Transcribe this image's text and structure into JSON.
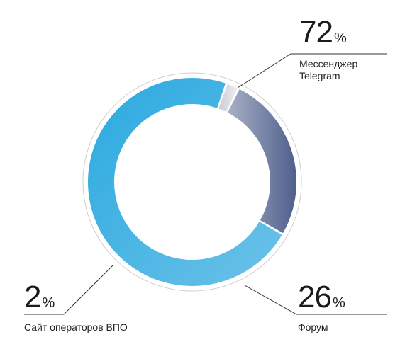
{
  "chart_data": {
    "type": "pie",
    "variant": "donut",
    "unit": "%",
    "slices": [
      {
        "label": "Мессенджер Telegram",
        "label_lines": [
          "Мессенджер",
          "Telegram"
        ],
        "value": 72,
        "color_start": "#2aa9e0",
        "color_end": "#6cc2e8"
      },
      {
        "label": "Форум",
        "label_lines": [
          "Форум"
        ],
        "value": 26,
        "color_start": "#4f5f8d",
        "color_end": "#a8b0c5"
      },
      {
        "label": "Сайт операторов ВПО",
        "label_lines": [
          "Сайт операторов ВПО"
        ],
        "value": 2,
        "color_start": "#c9cdd4",
        "color_end": "#eceef1"
      }
    ],
    "legend": "callouts"
  },
  "display": {
    "telegram_pct": "72",
    "forum_pct": "26",
    "site_pct": "2",
    "pct_sign": "%",
    "telegram_line1": "Мессенджер",
    "telegram_line2": "Telegram",
    "forum_label": "Форум",
    "site_label": "Сайт операторов ВПО"
  }
}
